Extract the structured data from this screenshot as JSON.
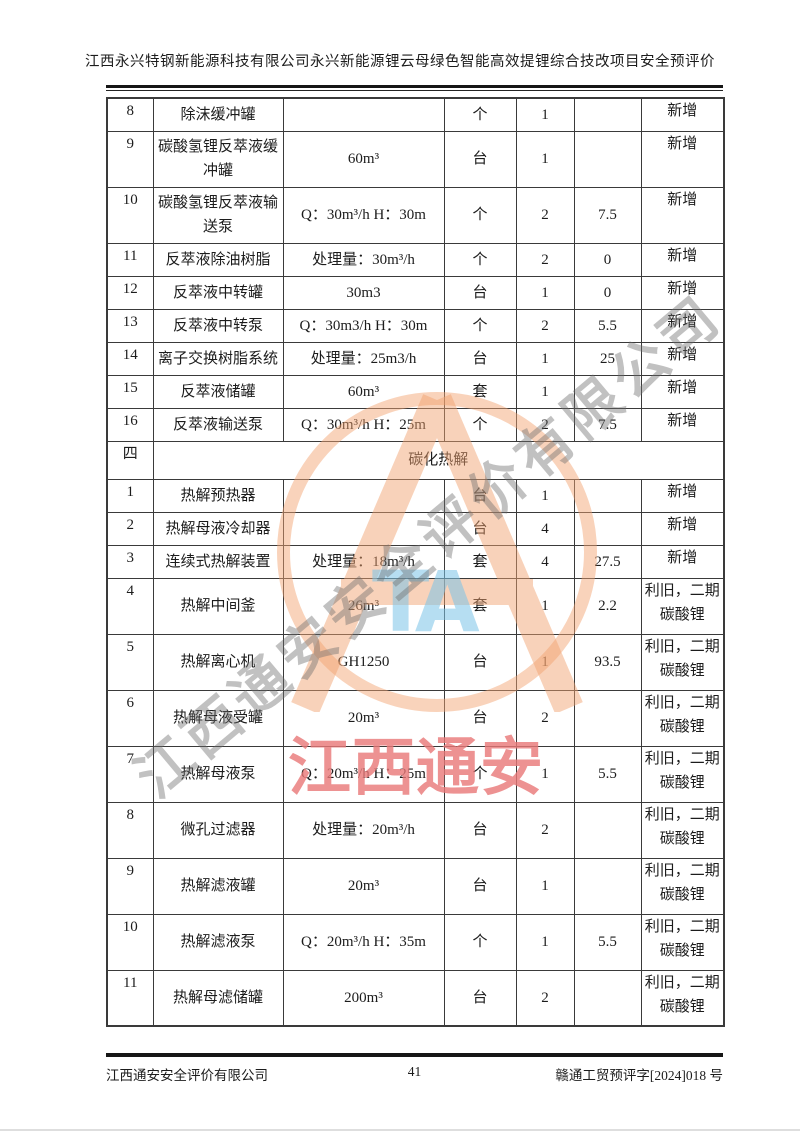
{
  "header": {
    "title": "江西永兴特钢新能源科技有限公司永兴新能源锂云母绿色智能高效提锂综合技改项目安全预评价"
  },
  "table": {
    "rows": [
      {
        "num": "8",
        "name": "除沫缓冲罐",
        "spec": "",
        "unit": "个",
        "qty": "1",
        "power": "",
        "remark": "新增"
      },
      {
        "num": "9",
        "name": "碳酸氢锂反萃液缓冲罐",
        "spec": "60m³",
        "unit": "台",
        "qty": "1",
        "power": "",
        "remark": "新增"
      },
      {
        "num": "10",
        "name": "碳酸氢锂反萃液输送泵",
        "spec": "Q：30m³/h  H：30m",
        "unit": "个",
        "qty": "2",
        "power": "7.5",
        "remark": "新增"
      },
      {
        "num": "11",
        "name": "反萃液除油树脂",
        "spec": "处理量：30m³/h",
        "unit": "个",
        "qty": "2",
        "power": "0",
        "remark": "新增"
      },
      {
        "num": "12",
        "name": "反萃液中转罐",
        "spec": "30m3",
        "unit": "台",
        "qty": "1",
        "power": "0",
        "remark": "新增"
      },
      {
        "num": "13",
        "name": "反萃液中转泵",
        "spec": "Q：30m3/h  H：30m",
        "unit": "个",
        "qty": "2",
        "power": "5.5",
        "remark": "新增"
      },
      {
        "num": "14",
        "name": "离子交换树脂系统",
        "spec": "处理量：25m3/h",
        "unit": "台",
        "qty": "1",
        "power": "25",
        "remark": "新增"
      },
      {
        "num": "15",
        "name": "反萃液储罐",
        "spec": "60m³",
        "unit": "套",
        "qty": "1",
        "power": "",
        "remark": "新增"
      },
      {
        "num": "16",
        "name": "反萃液输送泵",
        "spec": "Q：30m³/h  H：25m",
        "unit": "个",
        "qty": "2",
        "power": "7.5",
        "remark": "新增"
      },
      {
        "num": "四",
        "section_title": "碳化热解"
      },
      {
        "num": "1",
        "name": "热解预热器",
        "spec": "",
        "unit": "台",
        "qty": "1",
        "power": "",
        "remark": "新增"
      },
      {
        "num": "2",
        "name": "热解母液冷却器",
        "spec": "",
        "unit": "台",
        "qty": "4",
        "power": "",
        "remark": "新增"
      },
      {
        "num": "3",
        "name": "连续式热解装置",
        "spec": "处理量：18m³/h",
        "unit": "套",
        "qty": "4",
        "power": "27.5",
        "remark": "新增"
      },
      {
        "num": "4",
        "name": "热解中间釜",
        "spec": "26m³",
        "unit": "套",
        "qty": "1",
        "power": "2.2",
        "remark": "利旧，二期碳酸锂"
      },
      {
        "num": "5",
        "name": "热解离心机",
        "spec": "GH1250",
        "unit": "台",
        "qty": "1",
        "power": "93.5",
        "remark": "利旧，二期碳酸锂"
      },
      {
        "num": "6",
        "name": "热解母液受罐",
        "spec": "20m³",
        "unit": "台",
        "qty": "2",
        "power": "",
        "remark": "利旧，二期碳酸锂"
      },
      {
        "num": "7",
        "name": "热解母液泵",
        "spec": "Q：20m³/h  H：25m",
        "unit": "个",
        "qty": "1",
        "power": "5.5",
        "remark": "利旧，二期碳酸锂"
      },
      {
        "num": "8",
        "name": "微孔过滤器",
        "spec": "处理量：20m³/h",
        "unit": "台",
        "qty": "2",
        "power": "",
        "remark": "利旧，二期碳酸锂"
      },
      {
        "num": "9",
        "name": "热解滤液罐",
        "spec": "20m³",
        "unit": "台",
        "qty": "1",
        "power": "",
        "remark": "利旧，二期碳酸锂"
      },
      {
        "num": "10",
        "name": "热解滤液泵",
        "spec": "Q：20m³/h  H：35m",
        "unit": "个",
        "qty": "1",
        "power": "5.5",
        "remark": "利旧，二期碳酸锂"
      },
      {
        "num": "11",
        "name": "热解母滤储罐",
        "spec": "200m³",
        "unit": "台",
        "qty": "2",
        "power": "",
        "remark": "利旧，二期碳酸锂"
      }
    ]
  },
  "watermarks": {
    "diagonal_text": "江西通安安全评价有限公司",
    "red_text": "江西通安",
    "logo_letters": "TA",
    "orange_color": "#F2A370",
    "blue_color": "#7CC4E8",
    "red_color": "#E97878",
    "gray_color": "#6E6E6E"
  },
  "footer": {
    "company": "江西通安安全评价有限公司",
    "page_number": "41",
    "doc_number": "赣通工贸预评字[2024]018 号"
  }
}
